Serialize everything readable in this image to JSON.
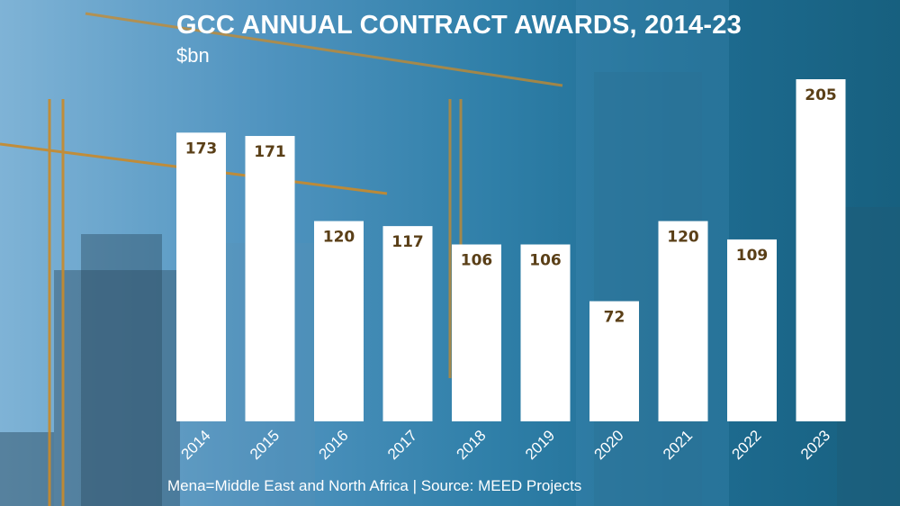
{
  "title": "GCC ANNUAL CONTRACT AWARDS, 2014-23",
  "subtitle": "$bn",
  "source_note": "Mena=Middle East and North Africa | Source: MEED Projects",
  "colors": {
    "bar": "#ffffff",
    "value_label": "#5a3f17",
    "axis_label": "#ffffff"
  },
  "chart_data": {
    "type": "bar",
    "title": "GCC ANNUAL CONTRACT AWARDS, 2014-23",
    "ylabel": "$bn",
    "xlabel": "",
    "categories": [
      "2014",
      "2015",
      "2016",
      "2017",
      "2018",
      "2019",
      "2020",
      "2021",
      "2022",
      "2023"
    ],
    "values": [
      173,
      171,
      120,
      117,
      106,
      106,
      72,
      120,
      109,
      205
    ],
    "ylim": [
      0,
      205
    ],
    "grid": false,
    "data_labels": true
  }
}
